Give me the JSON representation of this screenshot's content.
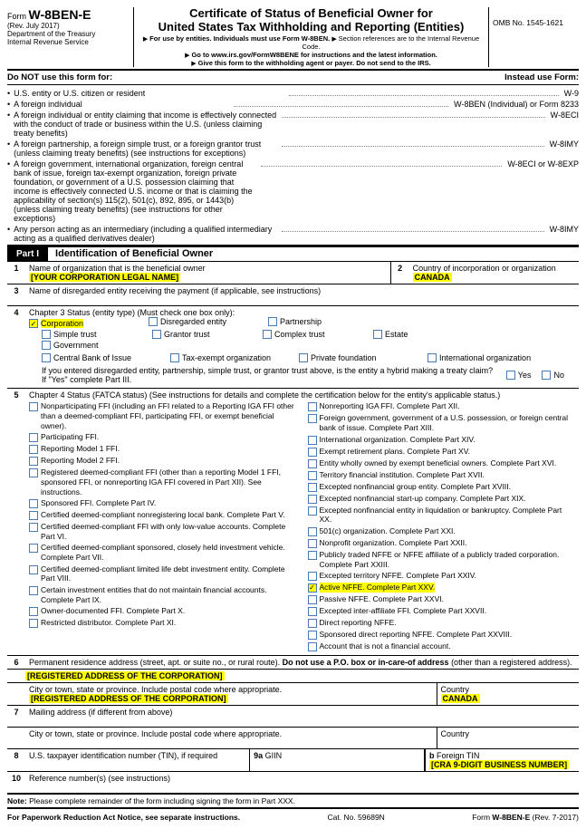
{
  "header": {
    "form_prefix": "Form",
    "form_code": "W-8BEN-E",
    "rev": "(Rev. July 2017)",
    "dept1": "Department of the Treasury",
    "dept2": "Internal Revenue Service",
    "title1": "Certificate of Status of Beneficial Owner for",
    "title2": "United States Tax Withholding and Reporting (Entities)",
    "note1": "For use by entities. Individuals must use Form W-8BEN.",
    "note1b": "Section references are to the Internal Revenue Code.",
    "note2": "Go to www.irs.gov/FormW8BENE for instructions and the latest information.",
    "note3": "Give this form to the withholding agent or payer. Do not send to the IRS.",
    "omb": "OMB No. 1545-1621"
  },
  "donot": {
    "label": "Do NOT use this form for:",
    "instead": "Instead use Form:"
  },
  "bullets": [
    {
      "text": "U.S. entity or U.S. citizen or resident",
      "form": "W-9"
    },
    {
      "text": "A foreign individual",
      "form": "W-8BEN (Individual) or Form 8233"
    },
    {
      "text": "A foreign individual or entity claiming that income is effectively connected with the conduct of trade or business within the U.S. (unless claiming treaty benefits)",
      "form": "W-8ECI"
    },
    {
      "text": "A foreign partnership, a foreign simple trust, or a foreign grantor trust (unless claiming treaty benefits) (see instructions for exceptions)",
      "form": "W-8IMY"
    },
    {
      "text": "A foreign government, international organization, foreign central bank of issue, foreign tax-exempt organization, foreign private foundation, or government of a U.S. possession claiming that income is effectively connected U.S. income or that is claiming the applicability of section(s) 115(2), 501(c), 892, 895, or 1443(b) (unless claiming treaty benefits) (see instructions for other exceptions)",
      "form": "W-8ECI or W-8EXP"
    },
    {
      "text": "Any person acting as an intermediary (including a qualified intermediary acting as a qualified derivatives dealer)",
      "form": "W-8IMY"
    }
  ],
  "partI": {
    "label": "Part I",
    "title": "Identification of Beneficial Owner"
  },
  "lines": {
    "l1": {
      "num": "1",
      "label": "Name of organization that is the beneficial owner",
      "value": "[YOUR CORPORATION LEGAL NAME]"
    },
    "l2": {
      "num": "2",
      "label": "Country of incorporation or organization",
      "value": "CANADA"
    },
    "l3": {
      "num": "3",
      "label": "Name of disregarded entity receiving the payment (if applicable, see instructions)"
    },
    "l4": {
      "num": "4",
      "label": "Chapter 3 Status (entity type) (Must check one box only):",
      "opts1": [
        {
          "label": "Corporation",
          "checked": true
        },
        {
          "label": "Disregarded entity"
        },
        {
          "label": "Partnership"
        }
      ],
      "opts2": [
        {
          "label": "Simple trust"
        },
        {
          "label": "Grantor trust"
        },
        {
          "label": "Complex trust"
        },
        {
          "label": "Estate"
        },
        {
          "label": "Government"
        }
      ],
      "opts3": [
        {
          "label": "Central Bank of Issue"
        },
        {
          "label": "Tax-exempt organization"
        },
        {
          "label": "Private foundation"
        },
        {
          "label": "International organization"
        }
      ],
      "hybrid": "If you entered disregarded entity, partnership, simple trust, or grantor trust above, is the entity a hybrid making a treaty claim? If \"Yes\" complete Part III.",
      "yes": "Yes",
      "no": "No"
    },
    "l5": {
      "num": "5",
      "label": "Chapter 4 Status (FATCA status) (See instructions for details and complete the  certification below for the entity's applicable status.)",
      "left": [
        "Nonparticipating FFI (including an FFI related to a Reporting IGA FFI other than a deemed-compliant FFI, participating FFI, or exempt beneficial owner).",
        "Participating FFI.",
        "Reporting Model 1 FFI.",
        "Reporting Model 2 FFI.",
        "Registered deemed-compliant FFI (other than a reporting Model 1 FFI, sponsored FFI, or nonreporting IGA FFI covered in Part XII). See instructions.",
        "Sponsored FFI. Complete Part IV.",
        "Certified deemed-compliant nonregistering local bank. Complete Part V.",
        "Certified deemed-compliant FFI with only low-value accounts. Complete Part VI.",
        "Certified deemed-compliant sponsored, closely held investment vehicle. Complete Part VII.",
        "Certified deemed-compliant limited life debt investment entity. Complete Part VIII.",
        "Certain investment entities that do not maintain financial accounts. Complete Part IX.",
        "Owner-documented FFI. Complete Part X.",
        "Restricted distributor. Complete Part XI."
      ],
      "right": [
        {
          "label": "Nonreporting IGA FFI. Complete Part XII."
        },
        {
          "label": "Foreign government, government of a U.S. possession, or foreign central bank of issue. Complete Part XIII."
        },
        {
          "label": "International organization. Complete Part XIV."
        },
        {
          "label": "Exempt retirement plans. Complete Part XV."
        },
        {
          "label": "Entity wholly owned by exempt beneficial owners. Complete Part XVI."
        },
        {
          "label": "Territory financial institution. Complete Part XVII."
        },
        {
          "label": "Excepted nonfinancial group entity. Complete Part XVIII."
        },
        {
          "label": "Excepted nonfinancial start-up company. Complete Part XIX."
        },
        {
          "label": "Excepted nonfinancial entity in liquidation or bankruptcy. Complete Part XX."
        },
        {
          "label": "501(c) organization. Complete Part XXI."
        },
        {
          "label": "Nonprofit organization. Complete Part XXII."
        },
        {
          "label": "Publicly traded NFFE or NFFE affiliate of a publicly traded corporation. Complete Part XXIII."
        },
        {
          "label": "Excepted territory NFFE. Complete Part XXIV."
        },
        {
          "label": "Active NFFE. Complete Part XXV.",
          "checked": true,
          "hl": true
        },
        {
          "label": "Passive NFFE. Complete Part XXVI."
        },
        {
          "label": "Excepted inter-affiliate FFI. Complete Part XXVII."
        },
        {
          "label": "Direct reporting NFFE."
        },
        {
          "label": "Sponsored direct reporting NFFE. Complete Part XXVIII."
        },
        {
          "label": "Account that is not a financial account."
        }
      ]
    },
    "l6": {
      "num": "6",
      "label": "Permanent residence address (street, apt. or suite no., or rural route).",
      "bold": "Do not use a P.O. box or in-care-of address",
      "after": "(other than a registered address).",
      "value": "[REGISTERED ADDRESS OF THE CORPORATION]",
      "city_label": "City or town, state or province. Include postal code where appropriate.",
      "city_value": "[REGISTERED ADDRESS OF THE CORPORATION]",
      "country_label": "Country",
      "country_value": "CANADA"
    },
    "l7": {
      "num": "7",
      "label": "Mailing address (if different from above)",
      "city_label": "City or town, state or province. Include postal code where appropriate.",
      "country_label": "Country"
    },
    "l8": {
      "num": "8",
      "label": "U.S. taxpayer identification number (TIN), if required"
    },
    "l9a": {
      "num": "9a",
      "label": "GIIN"
    },
    "l9b": {
      "num": "b",
      "label": "Foreign TIN",
      "value": "[CRA 9-DIGIT BUSINESS NUMBER]"
    },
    "l10": {
      "num": "10",
      "label": "Reference number(s) (see instructions)"
    }
  },
  "note": "Note: Please complete remainder of the form including signing the form in Part XXX.",
  "footer": {
    "left": "For Paperwork Reduction Act Notice, see separate instructions.",
    "mid": "Cat. No. 59689N",
    "right_prefix": "Form",
    "right_code": "W-8BEN-E",
    "right_suffix": "(Rev. 7-2017)"
  }
}
